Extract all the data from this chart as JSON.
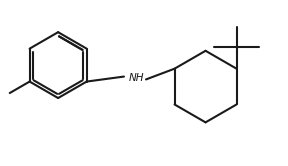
{
  "bg_color": "#ffffff",
  "line_color": "#1a1a1a",
  "line_width": 1.5,
  "font_size": 7.5,
  "nh_label": "NH",
  "figsize": [
    2.88,
    1.66
  ],
  "dpi": 100,
  "xlim": [
    0,
    10
  ],
  "ylim": [
    0,
    5.75
  ]
}
